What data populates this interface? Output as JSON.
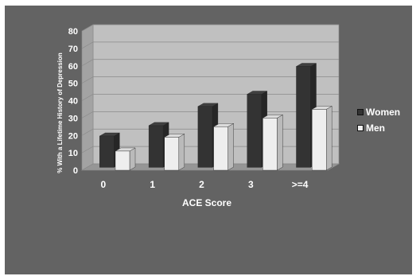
{
  "chart_data": {
    "type": "bar",
    "xlabel": "ACE Score",
    "ylabel": "% With a Lifetime History of Depression",
    "categories": [
      "0",
      "1",
      "2",
      "3",
      ">=4"
    ],
    "ylim": [
      0,
      80
    ],
    "yticks": [
      0,
      10,
      20,
      30,
      40,
      50,
      60,
      70,
      80
    ],
    "grid": true,
    "legend_position": "right",
    "series": [
      {
        "name": "Women",
        "values": [
          18,
          24,
          35,
          42,
          58
        ],
        "color": "#333333"
      },
      {
        "name": "Men",
        "values": [
          11,
          19,
          25,
          30,
          35
        ],
        "color": "#eeeeee"
      }
    ]
  },
  "colors": {
    "background": "#636363",
    "plot_wall": "#c0c0c0",
    "text": "#ffffff"
  }
}
